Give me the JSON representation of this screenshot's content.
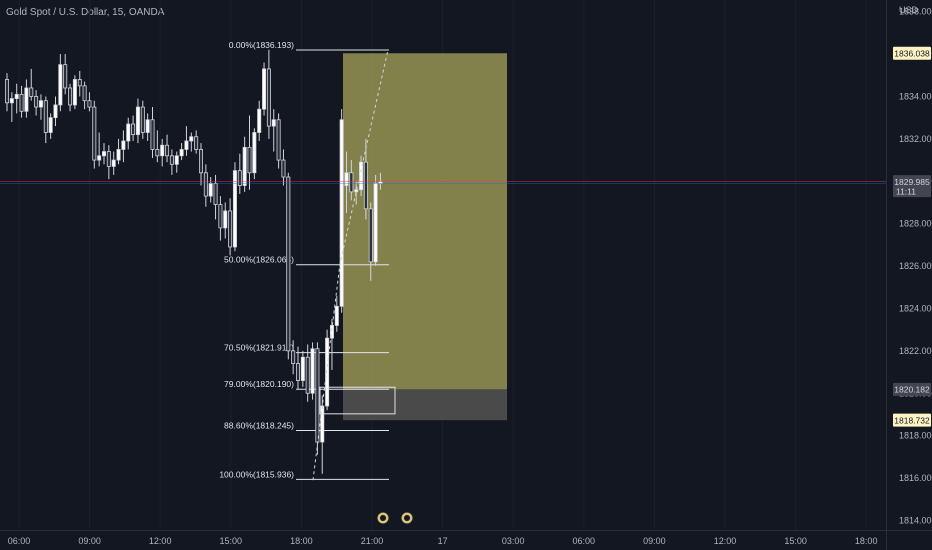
{
  "symbol_title": "Gold Spot / U.S. Dollar, 15, OANDA",
  "currency": "USD",
  "chart_data": {
    "type": "candlestick",
    "y_axis": {
      "min": 1813.55,
      "max": 1838.55,
      "ticks": [
        "1814.000",
        "1816.000",
        "1818.000",
        "1820.000",
        "1822.000",
        "1824.000",
        "1826.000",
        "1828.000",
        "1830.000",
        "1832.000",
        "1834.000",
        "1836.000",
        "1838.000"
      ]
    },
    "x_axis": {
      "ticks": [
        "06:00",
        "09:00",
        "12:00",
        "15:00",
        "18:00",
        "21:00",
        "17",
        "03:00",
        "06:00",
        "09:00",
        "12:00",
        "15:00",
        "18:00"
      ]
    },
    "price_labels": [
      {
        "text": "1836.038",
        "price": 1836.038,
        "bg": "#fff3c4",
        "fg": "#131722"
      },
      {
        "text": "1829.985",
        "price": 1829.985,
        "bg": "#434651",
        "fg": "#d1d4dc",
        "sub": "11:11"
      },
      {
        "text": "1820.182",
        "price": 1820.182,
        "bg": "#434651",
        "fg": "#d1d4dc"
      },
      {
        "text": "1818.732",
        "price": 1818.732,
        "bg": "#fff3c4",
        "fg": "#131722"
      }
    ],
    "fib_levels": [
      {
        "label": "0.00%(1836.193)",
        "price": 1836.193
      },
      {
        "label": "50.00%(1826.064)",
        "price": 1826.064
      },
      {
        "label": "70.50%(1821.917)",
        "price": 1821.917
      },
      {
        "label": "79.00%(1820.190)",
        "price": 1820.19
      },
      {
        "label": "88.60%(1818.245)",
        "price": 1818.245
      },
      {
        "label": "100.00%(1815.936)",
        "price": 1815.936
      }
    ],
    "position_box": {
      "top_price": 1836.038,
      "entry_price": 1820.182,
      "stop_price": 1818.732,
      "profit_color": "#8d8b4f",
      "loss_color": "#4a4a4a"
    },
    "current_price": 1829.985,
    "candles": [
      {
        "o": 1834.8,
        "h": 1835.1,
        "l": 1833.3,
        "c": 1833.7
      },
      {
        "o": 1833.7,
        "h": 1834.2,
        "l": 1832.8,
        "c": 1833.9
      },
      {
        "o": 1833.9,
        "h": 1834.6,
        "l": 1833.2,
        "c": 1834.1
      },
      {
        "o": 1834.1,
        "h": 1834.5,
        "l": 1833.0,
        "c": 1833.3
      },
      {
        "o": 1833.3,
        "h": 1834.8,
        "l": 1833.0,
        "c": 1834.4
      },
      {
        "o": 1834.4,
        "h": 1835.3,
        "l": 1833.8,
        "c": 1834.0
      },
      {
        "o": 1834.0,
        "h": 1834.3,
        "l": 1833.1,
        "c": 1833.5
      },
      {
        "o": 1833.5,
        "h": 1834.1,
        "l": 1832.9,
        "c": 1833.8
      },
      {
        "o": 1833.8,
        "h": 1834.0,
        "l": 1831.8,
        "c": 1832.3
      },
      {
        "o": 1832.3,
        "h": 1833.2,
        "l": 1832.0,
        "c": 1833.0
      },
      {
        "o": 1833.0,
        "h": 1834.0,
        "l": 1832.6,
        "c": 1833.6
      },
      {
        "o": 1833.6,
        "h": 1836.0,
        "l": 1833.3,
        "c": 1835.5
      },
      {
        "o": 1835.5,
        "h": 1836.0,
        "l": 1834.1,
        "c": 1834.4
      },
      {
        "o": 1834.4,
        "h": 1834.6,
        "l": 1833.3,
        "c": 1833.6
      },
      {
        "o": 1833.6,
        "h": 1835.0,
        "l": 1833.4,
        "c": 1834.8
      },
      {
        "o": 1834.8,
        "h": 1835.2,
        "l": 1834.0,
        "c": 1834.5
      },
      {
        "o": 1834.5,
        "h": 1834.7,
        "l": 1833.4,
        "c": 1833.8
      },
      {
        "o": 1833.8,
        "h": 1834.2,
        "l": 1833.3,
        "c": 1833.5
      },
      {
        "o": 1833.5,
        "h": 1833.8,
        "l": 1830.6,
        "c": 1831.0
      },
      {
        "o": 1831.0,
        "h": 1832.3,
        "l": 1830.7,
        "c": 1831.2
      },
      {
        "o": 1831.2,
        "h": 1831.8,
        "l": 1830.8,
        "c": 1831.4
      },
      {
        "o": 1831.4,
        "h": 1831.7,
        "l": 1830.1,
        "c": 1830.7
      },
      {
        "o": 1830.7,
        "h": 1831.4,
        "l": 1830.3,
        "c": 1831.0
      },
      {
        "o": 1831.0,
        "h": 1832.0,
        "l": 1830.8,
        "c": 1831.5
      },
      {
        "o": 1831.5,
        "h": 1832.4,
        "l": 1830.9,
        "c": 1831.9
      },
      {
        "o": 1831.9,
        "h": 1833.0,
        "l": 1831.5,
        "c": 1832.7
      },
      {
        "o": 1832.7,
        "h": 1833.1,
        "l": 1831.9,
        "c": 1832.2
      },
      {
        "o": 1832.2,
        "h": 1833.9,
        "l": 1831.8,
        "c": 1833.5
      },
      {
        "o": 1833.5,
        "h": 1833.8,
        "l": 1832.0,
        "c": 1832.3
      },
      {
        "o": 1832.3,
        "h": 1833.2,
        "l": 1831.9,
        "c": 1832.9
      },
      {
        "o": 1832.9,
        "h": 1833.5,
        "l": 1831.1,
        "c": 1831.5
      },
      {
        "o": 1831.5,
        "h": 1832.4,
        "l": 1830.9,
        "c": 1831.2
      },
      {
        "o": 1831.2,
        "h": 1832.0,
        "l": 1830.7,
        "c": 1831.7
      },
      {
        "o": 1831.7,
        "h": 1832.2,
        "l": 1830.9,
        "c": 1831.2
      },
      {
        "o": 1831.2,
        "h": 1831.5,
        "l": 1830.3,
        "c": 1830.8
      },
      {
        "o": 1830.8,
        "h": 1831.4,
        "l": 1830.4,
        "c": 1831.2
      },
      {
        "o": 1831.2,
        "h": 1831.8,
        "l": 1831.0,
        "c": 1831.5
      },
      {
        "o": 1831.5,
        "h": 1832.6,
        "l": 1831.2,
        "c": 1831.9
      },
      {
        "o": 1831.9,
        "h": 1832.3,
        "l": 1831.4,
        "c": 1832.1
      },
      {
        "o": 1832.1,
        "h": 1832.4,
        "l": 1831.3,
        "c": 1831.5
      },
      {
        "o": 1831.5,
        "h": 1831.8,
        "l": 1829.8,
        "c": 1830.4
      },
      {
        "o": 1830.4,
        "h": 1830.8,
        "l": 1828.8,
        "c": 1829.3
      },
      {
        "o": 1829.3,
        "h": 1830.2,
        "l": 1829.0,
        "c": 1829.9
      },
      {
        "o": 1829.9,
        "h": 1830.3,
        "l": 1828.2,
        "c": 1828.9
      },
      {
        "o": 1828.9,
        "h": 1829.3,
        "l": 1827.2,
        "c": 1827.8
      },
      {
        "o": 1827.8,
        "h": 1829.0,
        "l": 1827.3,
        "c": 1828.6
      },
      {
        "o": 1828.6,
        "h": 1829.2,
        "l": 1826.5,
        "c": 1826.9
      },
      {
        "o": 1826.9,
        "h": 1830.9,
        "l": 1826.7,
        "c": 1830.5
      },
      {
        "o": 1830.5,
        "h": 1831.3,
        "l": 1829.4,
        "c": 1829.8
      },
      {
        "o": 1829.8,
        "h": 1832.1,
        "l": 1829.5,
        "c": 1831.6
      },
      {
        "o": 1831.6,
        "h": 1833.1,
        "l": 1829.6,
        "c": 1830.4
      },
      {
        "o": 1830.4,
        "h": 1832.5,
        "l": 1830.1,
        "c": 1832.3
      },
      {
        "o": 1832.3,
        "h": 1833.8,
        "l": 1831.9,
        "c": 1833.4
      },
      {
        "o": 1833.4,
        "h": 1835.6,
        "l": 1833.1,
        "c": 1835.3
      },
      {
        "o": 1835.3,
        "h": 1836.2,
        "l": 1832.0,
        "c": 1832.6
      },
      {
        "o": 1832.6,
        "h": 1833.4,
        "l": 1831.4,
        "c": 1832.9
      },
      {
        "o": 1832.9,
        "h": 1833.2,
        "l": 1830.6,
        "c": 1831.0
      },
      {
        "o": 1831.0,
        "h": 1831.5,
        "l": 1829.8,
        "c": 1830.2
      },
      {
        "o": 1830.2,
        "h": 1830.4,
        "l": 1821.6,
        "c": 1822.0
      },
      {
        "o": 1822.0,
        "h": 1822.5,
        "l": 1820.9,
        "c": 1821.4
      },
      {
        "o": 1821.4,
        "h": 1822.2,
        "l": 1820.2,
        "c": 1820.6
      },
      {
        "o": 1820.6,
        "h": 1822.0,
        "l": 1820.3,
        "c": 1821.7
      },
      {
        "o": 1821.7,
        "h": 1822.3,
        "l": 1819.6,
        "c": 1820.0
      },
      {
        "o": 1820.0,
        "h": 1822.4,
        "l": 1819.7,
        "c": 1822.1
      },
      {
        "o": 1822.1,
        "h": 1822.4,
        "l": 1817.1,
        "c": 1817.7
      },
      {
        "o": 1817.7,
        "h": 1819.9,
        "l": 1816.2,
        "c": 1819.4
      },
      {
        "o": 1819.4,
        "h": 1823.0,
        "l": 1819.2,
        "c": 1822.6
      },
      {
        "o": 1822.6,
        "h": 1823.5,
        "l": 1821.1,
        "c": 1823.2
      },
      {
        "o": 1823.2,
        "h": 1824.6,
        "l": 1822.9,
        "c": 1824.1
      },
      {
        "o": 1824.1,
        "h": 1833.4,
        "l": 1823.8,
        "c": 1832.9
      },
      {
        "o": 1829.8,
        "h": 1831.4,
        "l": 1828.5,
        "c": 1830.4
      },
      {
        "o": 1830.4,
        "h": 1831.0,
        "l": 1829.1,
        "c": 1829.5
      },
      {
        "o": 1829.5,
        "h": 1830.0,
        "l": 1828.9,
        "c": 1829.6
      },
      {
        "o": 1829.6,
        "h": 1831.2,
        "l": 1829.3,
        "c": 1830.9
      },
      {
        "o": 1830.9,
        "h": 1832.0,
        "l": 1828.2,
        "c": 1828.7
      },
      {
        "o": 1828.7,
        "h": 1829.0,
        "l": 1825.3,
        "c": 1826.2
      },
      {
        "o": 1826.2,
        "h": 1830.3,
        "l": 1826.0,
        "c": 1829.9
      },
      {
        "o": 1829.9,
        "h": 1830.4,
        "l": 1829.6,
        "c": 1829.985
      }
    ]
  }
}
